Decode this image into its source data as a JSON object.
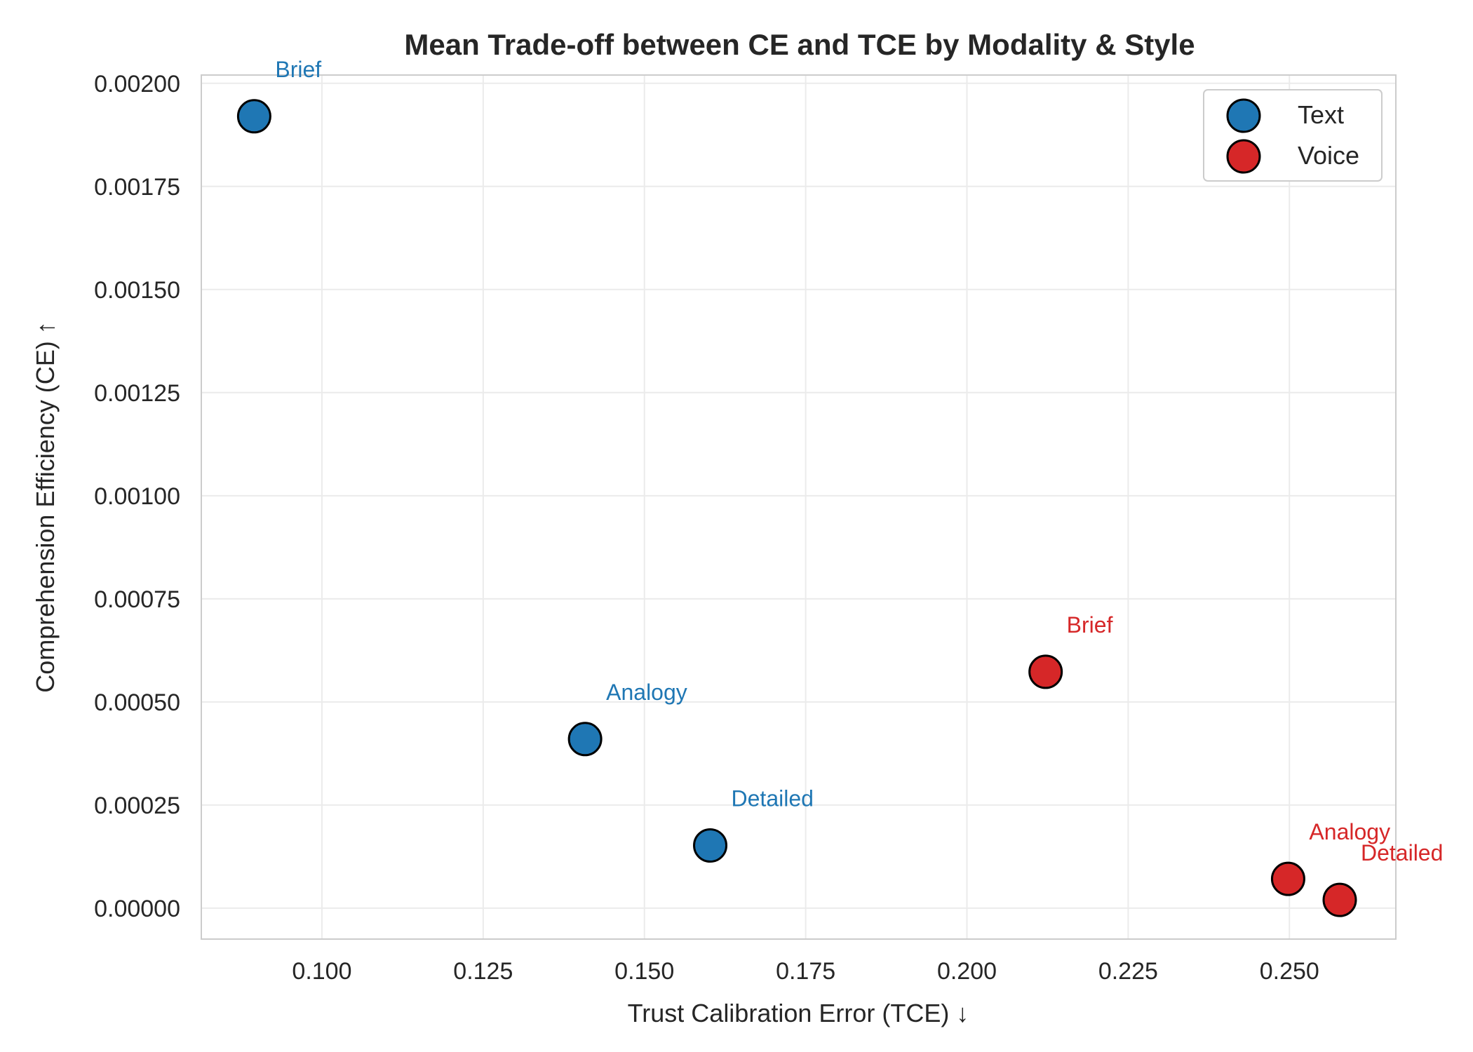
{
  "chart_data": {
    "type": "scatter",
    "title": "Mean Trade-off between CE and TCE by Modality & Style",
    "xlabel": "Trust Calibration Error (TCE) ↓",
    "ylabel": "Comprehension Efficiency (CE) ↑",
    "xlim": [
      0.0813,
      0.2665
    ],
    "ylim": [
      -7.5e-05,
      0.00202
    ],
    "xticks": [
      0.1,
      0.125,
      0.15,
      0.175,
      0.2,
      0.225,
      0.25
    ],
    "xtick_labels": [
      "0.100",
      "0.125",
      "0.150",
      "0.175",
      "0.200",
      "0.225",
      "0.250"
    ],
    "yticks": [
      0,
      0.00025,
      0.0005,
      0.00075,
      0.001,
      0.00125,
      0.0015,
      0.00175,
      0.002
    ],
    "ytick_labels": [
      "0.00000",
      "0.00025",
      "0.00050",
      "0.00075",
      "0.00100",
      "0.00125",
      "0.00150",
      "0.00175",
      "0.00200"
    ],
    "grid": true,
    "legend_position": "top-right",
    "series": [
      {
        "name": "Text",
        "color": "#1f77b4",
        "points": [
          {
            "label": "Brief",
            "x": 0.0895,
            "y": 0.00192
          },
          {
            "label": "Analogy",
            "x": 0.1408,
            "y": 0.00041
          },
          {
            "label": "Detailed",
            "x": 0.1602,
            "y": 0.000152
          }
        ]
      },
      {
        "name": "Voice",
        "color": "#d62728",
        "points": [
          {
            "label": "Brief",
            "x": 0.2122,
            "y": 0.000573
          },
          {
            "label": "Analogy",
            "x": 0.2498,
            "y": 7.1e-05
          },
          {
            "label": "Detailed",
            "x": 0.2578,
            "y": 2e-05
          }
        ]
      }
    ]
  }
}
